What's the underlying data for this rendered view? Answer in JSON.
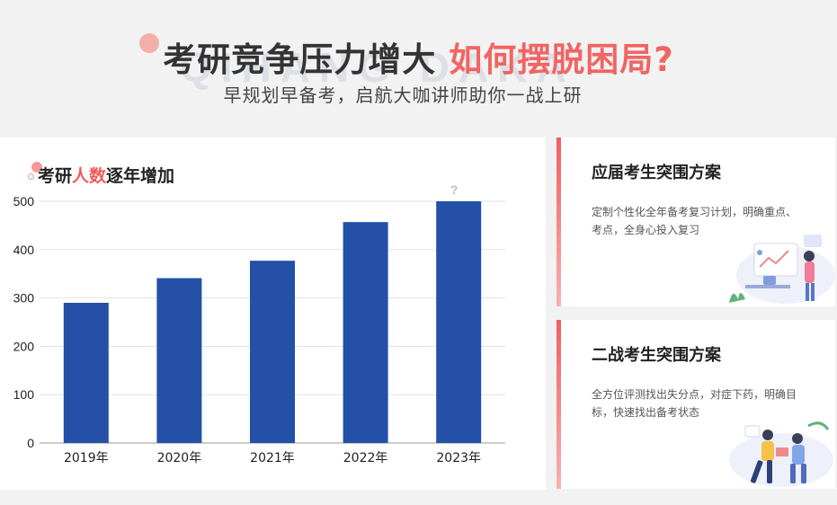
{
  "header": {
    "watermark": "QIHANG DAKA",
    "title_main": "考研竞争压力增大",
    "title_accent": "如何摆脱困局?",
    "subtitle": "早规划早备考，启航大咖讲师助你一战上研"
  },
  "chart_card": {
    "title_pre": "考研",
    "title_highlight": "人数",
    "title_post": "逐年增加"
  },
  "chart_data": {
    "type": "bar",
    "title": "考研人数逐年增加",
    "categories": [
      "2019年",
      "2020年",
      "2021年",
      "2022年",
      "2023年"
    ],
    "values": [
      290,
      341,
      377,
      457,
      500
    ],
    "ylim": [
      0,
      500
    ],
    "yticks": [
      0,
      100,
      200,
      300,
      400,
      500
    ],
    "grid": true,
    "annotations": [
      {
        "category": "2023年",
        "text": "?"
      }
    ],
    "colors": {
      "bar": "#2550a8",
      "grid": "#e3e3e3",
      "text": "#222222"
    }
  },
  "cards": [
    {
      "title": "应届考生突围方案",
      "desc": "定制个性化全年备考复习计划，明确重点、考点，全身心投入复习"
    },
    {
      "title": "二战考生突围方案",
      "desc": "全方位评测找出失分点，对症下药，明确目标，快速找出备考状态"
    }
  ],
  "colors": {
    "accent": "#f06563",
    "dark_text": "#333333",
    "bar_blue": "#2550a8"
  }
}
